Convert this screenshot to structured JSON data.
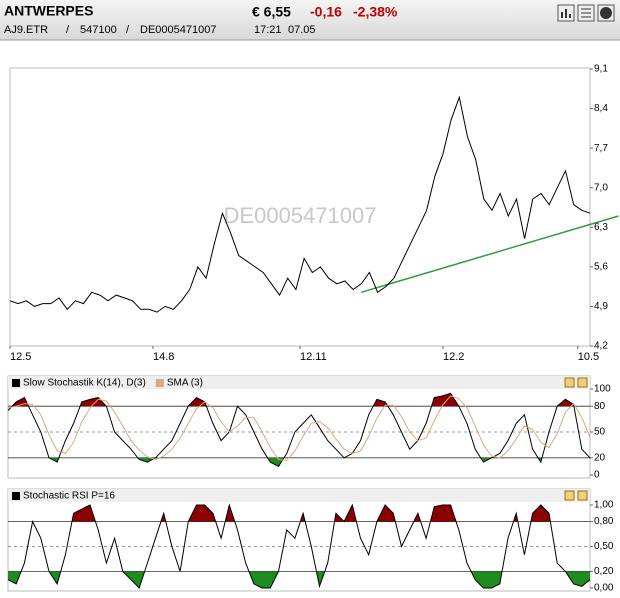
{
  "header": {
    "title": "ANTWERPES",
    "price": "€ 6,55",
    "change": "-0,16",
    "change_pct": "-2,38%",
    "symbol": "AJ9.ETR",
    "wkn": "547100",
    "isin": "DE0005471007",
    "time": "17:21",
    "date": "07.05",
    "separator": "/"
  },
  "chart_data": [
    {
      "type": "line",
      "watermark": "DE0005471007",
      "xlim": [
        0,
        71
      ],
      "xticks": [
        {
          "value": 0,
          "label": "12.5"
        },
        {
          "value": 17.5,
          "label": "14.8"
        },
        {
          "value": 35.5,
          "label": "12.11"
        },
        {
          "value": 53,
          "label": "12.2"
        },
        {
          "value": 69.5,
          "label": "10.5"
        }
      ],
      "ylim": [
        4.2,
        9.1
      ],
      "yticks": [
        {
          "value": 4.2,
          "label": "4,2"
        },
        {
          "value": 4.9,
          "label": "4,9"
        },
        {
          "value": 5.6,
          "label": "5,6"
        },
        {
          "value": 6.3,
          "label": "6,3"
        },
        {
          "value": 7.0,
          "label": "7,0"
        },
        {
          "value": 7.7,
          "label": "7,7"
        },
        {
          "value": 8.4,
          "label": "8,4"
        },
        {
          "value": 9.1,
          "label": "9,1"
        }
      ],
      "series": [
        {
          "color": "#000000",
          "values": [
            5.0,
            4.95,
            5.0,
            4.9,
            4.95,
            4.95,
            5.05,
            4.85,
            5.0,
            4.95,
            5.15,
            5.1,
            5.0,
            5.1,
            5.05,
            5.0,
            4.85,
            4.85,
            4.8,
            4.9,
            4.85,
            5.0,
            5.2,
            5.6,
            5.4,
            6.0,
            6.55,
            6.2,
            5.8,
            5.7,
            5.6,
            5.5,
            5.3,
            5.1,
            5.4,
            5.2,
            5.75,
            5.5,
            5.6,
            5.4,
            5.3,
            5.35,
            5.2,
            5.3,
            5.5,
            5.15,
            5.25,
            5.4,
            5.7,
            6.0,
            6.3,
            6.6,
            7.2,
            7.6,
            8.2,
            8.6,
            7.9,
            7.5,
            6.8,
            6.6,
            6.9,
            6.5,
            6.8,
            6.1,
            6.8,
            6.9,
            6.7,
            7.0,
            7.3,
            6.7,
            6.6,
            6.55
          ]
        }
      ],
      "trendline": {
        "x": [
          43,
          74.5
        ],
        "y": [
          5.15,
          6.5
        ],
        "color": "#2e9e3a"
      }
    },
    {
      "type": "oscillator",
      "xlim": [
        0,
        71
      ],
      "ylim": [
        0,
        100
      ],
      "yticks": [
        0,
        20,
        50,
        80,
        100
      ],
      "overbought": 80,
      "oversold": 20,
      "high_color": "#8b0000",
      "low_color": "#1e8c1e",
      "series": [
        {
          "name": "Slow Stochastik K(14), D(3)",
          "color": "#000000",
          "values": [
            75,
            85,
            90,
            70,
            50,
            20,
            15,
            40,
            60,
            85,
            88,
            90,
            80,
            50,
            40,
            30,
            18,
            15,
            20,
            30,
            40,
            60,
            80,
            90,
            85,
            60,
            40,
            50,
            80,
            70,
            50,
            30,
            15,
            10,
            25,
            50,
            60,
            70,
            55,
            40,
            30,
            20,
            25,
            40,
            70,
            88,
            85,
            70,
            50,
            30,
            40,
            60,
            90,
            92,
            95,
            80,
            60,
            30,
            15,
            20,
            25,
            40,
            60,
            70,
            30,
            15,
            50,
            80,
            88,
            82,
            30,
            20
          ]
        },
        {
          "name": "SMA (3)",
          "color": "#d8a888",
          "values": [
            78,
            80,
            83,
            82,
            70,
            47,
            28,
            25,
            38,
            62,
            78,
            88,
            86,
            73,
            57,
            40,
            29,
            21,
            18,
            22,
            30,
            43,
            60,
            77,
            85,
            78,
            62,
            50,
            57,
            67,
            67,
            50,
            32,
            18,
            17,
            28,
            45,
            60,
            62,
            55,
            42,
            30,
            25,
            28,
            45,
            66,
            81,
            81,
            68,
            50,
            40,
            43,
            63,
            81,
            92,
            89,
            78,
            57,
            35,
            22,
            20,
            28,
            42,
            57,
            53,
            38,
            32,
            48,
            73,
            83,
            67,
            44
          ]
        }
      ]
    },
    {
      "type": "oscillator",
      "xlim": [
        0,
        71
      ],
      "ylim": [
        0,
        1
      ],
      "yticks": [
        {
          "value": 0,
          "label": "0,00"
        },
        {
          "value": 0.2,
          "label": "0,20"
        },
        {
          "value": 0.5,
          "label": "0,50"
        },
        {
          "value": 0.8,
          "label": "0,80"
        },
        {
          "value": 1,
          "label": "1,00"
        }
      ],
      "overbought": 0.8,
      "oversold": 0.2,
      "high_color": "#8b0000",
      "low_color": "#1e8c1e",
      "series": [
        {
          "name": "Stochastic RSI P=16",
          "color": "#000000",
          "values": [
            0.1,
            0.05,
            0.3,
            0.8,
            0.6,
            0.2,
            0.05,
            0.4,
            0.9,
            0.95,
            1,
            0.7,
            0.3,
            0.6,
            0.2,
            0.1,
            0,
            0.3,
            0.6,
            0.9,
            0.5,
            0.2,
            0.8,
            1,
            1,
            0.9,
            0.6,
            1,
            0.7,
            0.3,
            0.05,
            0,
            0,
            0.2,
            0.7,
            0.6,
            0.9,
            0.5,
            0.02,
            0.3,
            0.9,
            0.8,
            1,
            0.6,
            0.4,
            0.8,
            1,
            0.9,
            0.5,
            0.7,
            0.9,
            0.6,
            0.98,
            1,
            1,
            0.7,
            0.3,
            0.1,
            0,
            0,
            0.05,
            0.6,
            0.9,
            0.4,
            0.9,
            1,
            0.9,
            0.3,
            0.2,
            0.05,
            0.02,
            0.1
          ]
        }
      ]
    }
  ]
}
